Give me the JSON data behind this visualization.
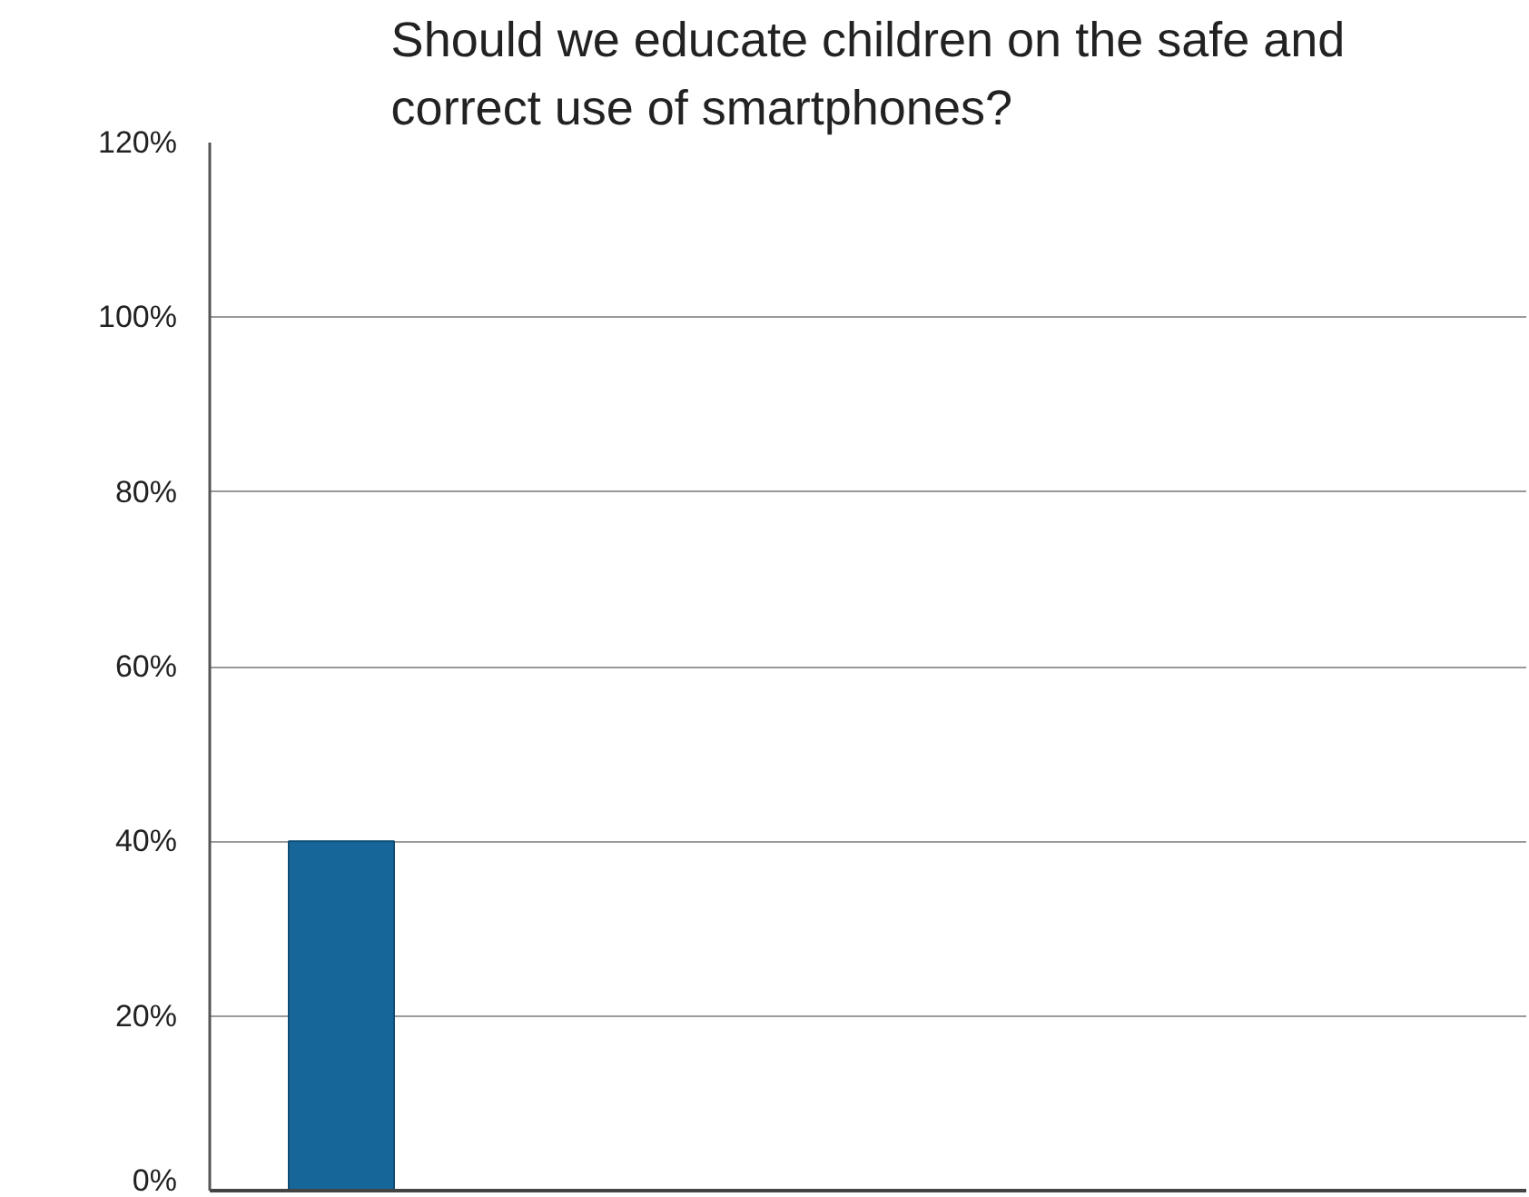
{
  "chart_data": {
    "type": "bar",
    "title": "Should we educate children on the safe and correct use of smartphones?",
    "categories": [
      null,
      null,
      null,
      null,
      null
    ],
    "values": [
      40,
      null,
      null,
      null,
      null
    ],
    "color": "#17669a",
    "ylim": [
      0,
      120
    ],
    "yticks": [
      {
        "value": 0,
        "label": "0%"
      },
      {
        "value": 20,
        "label": "20%"
      },
      {
        "value": 40,
        "label": "40%"
      },
      {
        "value": 60,
        "label": "60%"
      },
      {
        "value": 80,
        "label": "80%"
      },
      {
        "value": 100,
        "label": "100%"
      },
      {
        "value": 120,
        "label": "120%"
      }
    ],
    "grid": "y"
  }
}
